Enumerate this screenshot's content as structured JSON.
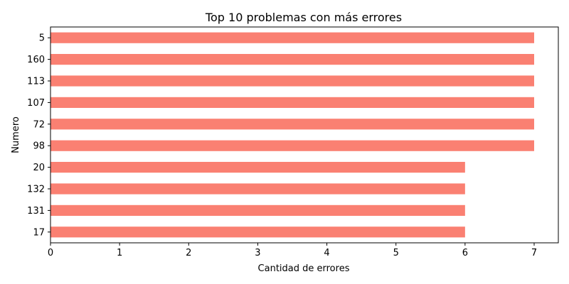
{
  "chart_data": {
    "type": "bar",
    "orientation": "horizontal",
    "title": "Top 10 problemas con más errores",
    "xlabel": "Cantidad de errores",
    "ylabel": "Numero",
    "categories": [
      "5",
      "160",
      "113",
      "107",
      "72",
      "98",
      "20",
      "132",
      "131",
      "17"
    ],
    "values": [
      7,
      7,
      7,
      7,
      7,
      7,
      6,
      6,
      6,
      6
    ],
    "xlim": [
      0,
      7.35
    ],
    "xticks": [
      0,
      1,
      2,
      3,
      4,
      5,
      6,
      7
    ],
    "bar_color": "#FA8072",
    "grid": false,
    "legend": "none"
  }
}
